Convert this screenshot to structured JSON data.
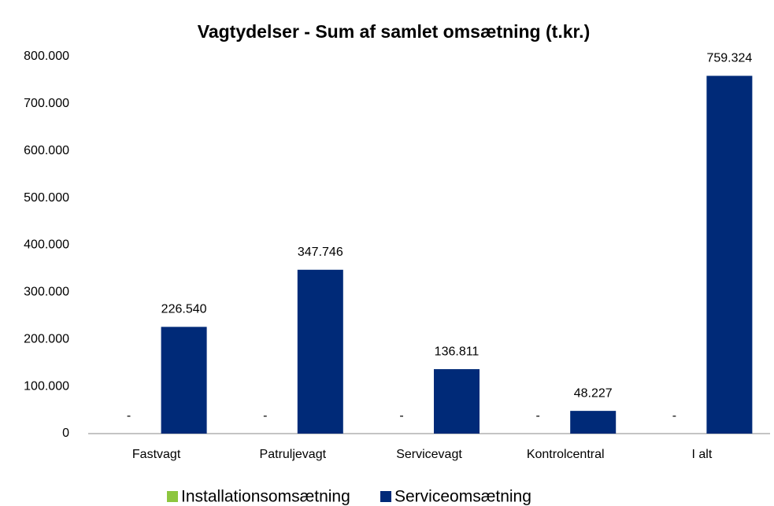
{
  "chart_data": {
    "type": "bar",
    "title": "Vagtydelser - Sum af samlet omsætning (t.kr.)",
    "categories": [
      "Fastvagt",
      "Patruljevagt",
      "Servicevagt",
      "Kontrolcentral",
      "I alt"
    ],
    "series": [
      {
        "name": "Installationsomsætning",
        "color": "#8dc63f",
        "values": [
          0,
          0,
          0,
          0,
          0
        ],
        "value_labels": [
          "-",
          "-",
          "-",
          "-",
          "-"
        ]
      },
      {
        "name": "Serviceomsætning",
        "color": "#002a78",
        "values": [
          226540,
          347746,
          136811,
          48227,
          759324
        ],
        "value_labels": [
          "226.540",
          "347.746",
          "136.811",
          "48.227",
          "759.324"
        ]
      }
    ],
    "ylim": [
      0,
      800000
    ],
    "yticks": [
      0,
      {
        "value": 100000,
        "label": "100.000"
      },
      {
        "value": 200000,
        "label": "200.000"
      },
      {
        "value": 300000,
        "label": "300.000"
      },
      {
        "value": 400000,
        "label": "400.000"
      },
      {
        "value": 500000,
        "label": "500.000"
      },
      {
        "value": 600000,
        "label": "600.000"
      },
      {
        "value": 700000,
        "label": "700.000"
      },
      {
        "value": 800000,
        "label": "800.000"
      }
    ],
    "grid": false,
    "legend": "bottom"
  }
}
